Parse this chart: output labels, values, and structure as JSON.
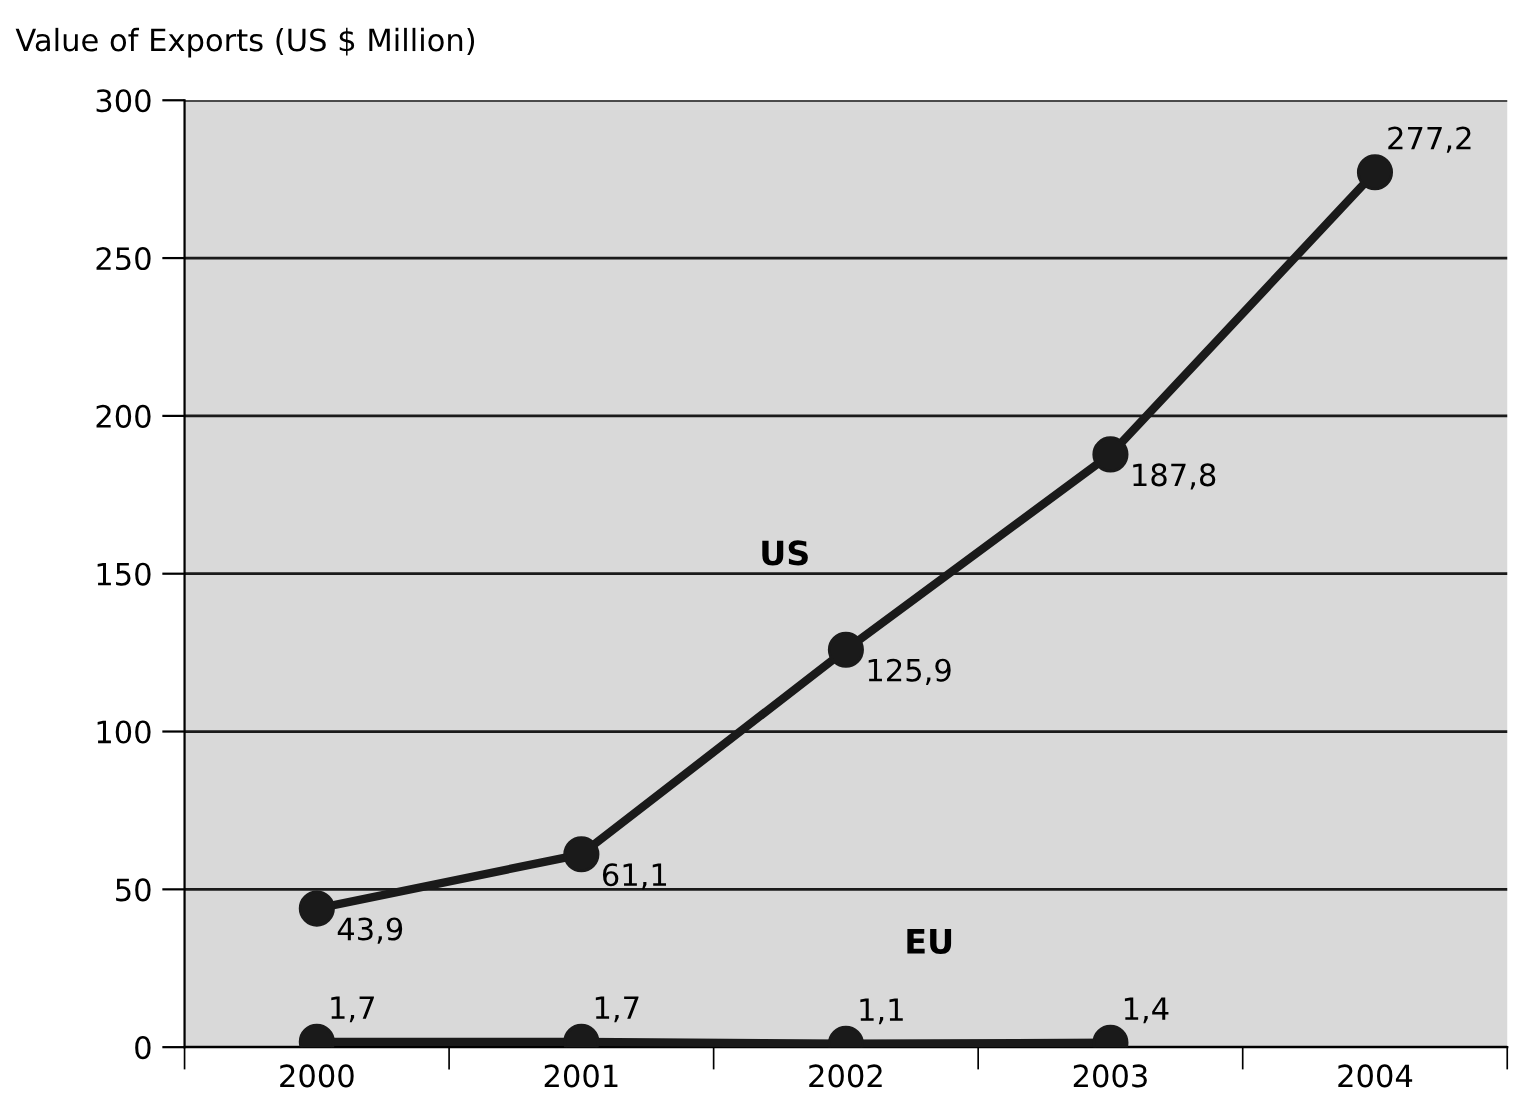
{
  "chart_data": {
    "type": "line",
    "ylabel": "Value of Exports (US $ Million)",
    "categories": [
      "2000",
      "2001",
      "2002",
      "2003",
      "2004"
    ],
    "series": [
      {
        "name": "US",
        "color": "#1a1a1a",
        "values": [
          43.9,
          61.1,
          125.9,
          187.8,
          277.2
        ],
        "value_labels": [
          "43,9",
          "61,1",
          "125,9",
          "187,8",
          "277,2"
        ]
      },
      {
        "name": "EU",
        "color": "#1a1a1a",
        "values": [
          1.7,
          1.7,
          1.1,
          1.4,
          null
        ],
        "value_labels": [
          "1,7",
          "1,7",
          "1,1",
          "1,4",
          null
        ]
      }
    ],
    "ylim": [
      0,
      300
    ],
    "yticks": [
      0,
      50,
      100,
      150,
      200,
      250,
      300
    ],
    "grid": "y",
    "legend": false,
    "marker": "circle",
    "line_style": "solid"
  }
}
